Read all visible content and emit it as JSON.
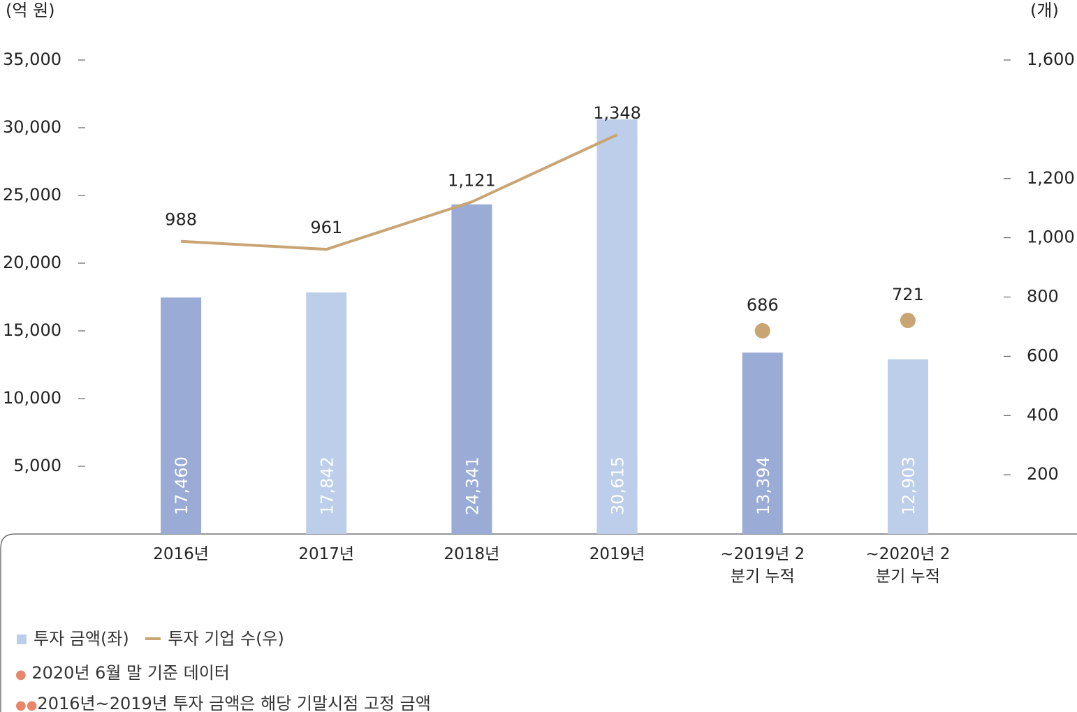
{
  "chart_data": {
    "type": "bar_line",
    "y_unit": "(억 원)",
    "y2_unit": "(개)",
    "categories": [
      "2016년",
      "2017년",
      "2018년",
      "2019년",
      "~2019년 2분기 누적",
      "~2020년 2분기 누적"
    ],
    "ylim": [
      0,
      35000
    ],
    "yticks": [
      {
        "value": 5000,
        "label": "5,000"
      },
      {
        "value": 10000,
        "label": "10,000"
      },
      {
        "value": 15000,
        "label": "15,000"
      },
      {
        "value": 20000,
        "label": "20,000"
      },
      {
        "value": 25000,
        "label": "25,000"
      },
      {
        "value": 30000,
        "label": "30,000"
      },
      {
        "value": 35000,
        "label": "35,000"
      }
    ],
    "y2lim": [
      0,
      1600
    ],
    "y2ticks": [
      200,
      400,
      600,
      800,
      {
        "value": 1000,
        "label": "1,000"
      },
      {
        "value": 1200,
        "label": "1,200"
      },
      {
        "value": 1600,
        "label": "1,600"
      }
    ],
    "series": [
      {
        "name": "투자 금액(좌)",
        "type": "bar",
        "color": "#bccee9",
        "colors": [
          "#9aabd6",
          "#bccee9",
          "#9aabd6",
          "#bccee9",
          "#9aabd6",
          "#bccee9"
        ],
        "values": [
          17460,
          17842,
          24341,
          30615,
          13394,
          12903
        ],
        "value_labels": [
          "17,460",
          "17,842",
          "24,341",
          "30,615",
          "13,394",
          "12,903"
        ]
      },
      {
        "name": "투자 기업 수(우)",
        "type": "line",
        "color": "#c9a574",
        "axis": "y2",
        "values": [
          988,
          961,
          1121,
          1348,
          null,
          null
        ],
        "value_labels": [
          "988",
          "961",
          "1,121",
          "1,348",
          null,
          null
        ]
      },
      {
        "type": "scatter",
        "color": "#c9a574",
        "axis": "y2",
        "values": [
          null,
          null,
          null,
          null,
          686,
          721
        ]
      }
    ],
    "notes": [
      "2020년 6월 말 기준 데이터",
      "2016년~2019년 투자 금액은 해당 기말시점 고정 금액"
    ]
  }
}
